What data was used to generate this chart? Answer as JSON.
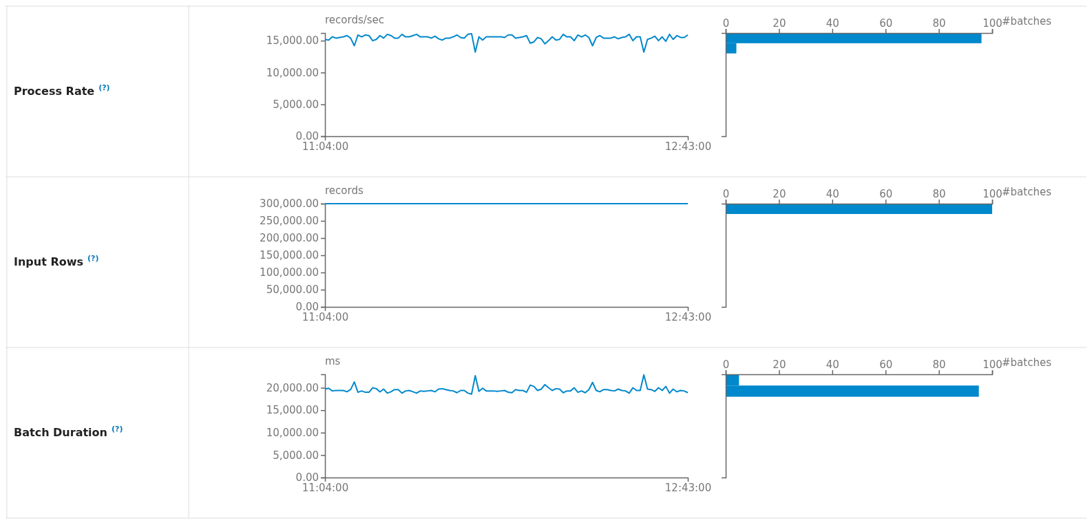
{
  "chart_data": [
    {
      "type": "other",
      "title": "Process Rate",
      "annotations": [
        "(?)"
      ]
    },
    {
      "type": "line",
      "ylabel": "records/sec",
      "ylim": [
        0,
        16200
      ],
      "yticks": [
        {
          "value": 0,
          "label": "0.00"
        },
        {
          "value": 5000,
          "label": "5,000.00"
        },
        {
          "value": 10000,
          "label": "10,000.00"
        },
        {
          "value": 15000,
          "label": "15,000.00"
        }
      ],
      "categories": [
        "11:04:00",
        null,
        null,
        null,
        null,
        null,
        null,
        null,
        null,
        null,
        null,
        null,
        null,
        null,
        null,
        null,
        null,
        null,
        null,
        null,
        null,
        null,
        null,
        null,
        null,
        null,
        null,
        null,
        null,
        null,
        null,
        null,
        null,
        null,
        null,
        null,
        null,
        null,
        null,
        null,
        null,
        null,
        null,
        null,
        null,
        null,
        null,
        null,
        null,
        null,
        null,
        null,
        null,
        null,
        null,
        null,
        null,
        null,
        null,
        null,
        null,
        null,
        null,
        null,
        null,
        null,
        null,
        null,
        null,
        null,
        null,
        null,
        null,
        null,
        null,
        null,
        null,
        null,
        null,
        null,
        null,
        null,
        null,
        null,
        null,
        null,
        null,
        null,
        null,
        null,
        null,
        null,
        null,
        null,
        null,
        null,
        null,
        null,
        null,
        "12:43:00"
      ],
      "series": [
        {
          "color": "#0088cc",
          "values": [
            15200,
            15100,
            15600,
            15400,
            15500,
            15600,
            15800,
            15400,
            14200,
            15900,
            15600,
            15900,
            15800,
            15000,
            15200,
            15800,
            15400,
            16000,
            15800,
            15400,
            15400,
            16000,
            15600,
            15600,
            15800,
            16000,
            15600,
            15600,
            15600,
            15400,
            15700,
            15300,
            15100,
            15400,
            15400,
            15600,
            15900,
            15500,
            15400,
            16000,
            16100,
            13200,
            15600,
            15100,
            15600,
            15600,
            15600,
            15600,
            15600,
            15500,
            15900,
            15900,
            15400,
            15500,
            15600,
            15800,
            14600,
            14800,
            15500,
            15300,
            14500,
            15000,
            15600,
            15100,
            15200,
            16000,
            15600,
            15600,
            15000,
            15900,
            15600,
            15900,
            15500,
            14200,
            15500,
            15800,
            15400,
            15400,
            15400,
            15600,
            15300,
            15500,
            15600,
            16000,
            15000,
            15600,
            15600,
            13200,
            15200,
            15400,
            15700,
            15000,
            15600,
            14900,
            16000,
            15200,
            15800,
            15500,
            15500,
            15900
          ]
        }
      ]
    },
    {
      "type": "histogram",
      "orientation": "horizontal",
      "xlabel": "#batches",
      "tick_labels": "x",
      "xlim": [
        0,
        100
      ],
      "xticks": [
        0,
        20,
        40,
        60,
        80,
        100
      ],
      "ylim": [
        0,
        16200
      ],
      "bins": [
        13000,
        14600,
        16200
      ],
      "values": [
        4,
        96
      ],
      "color": "#0088cc"
    },
    {
      "type": "other",
      "title": "Input Rows",
      "annotations": [
        "(?)"
      ]
    },
    {
      "type": "line",
      "ylabel": "records",
      "ylim": [
        0,
        300000
      ],
      "yticks": [
        {
          "value": 0,
          "label": "0.00"
        },
        {
          "value": 50000,
          "label": "50,000.00"
        },
        {
          "value": 100000,
          "label": "100,000.00"
        },
        {
          "value": 150000,
          "label": "150,000.00"
        },
        {
          "value": 200000,
          "label": "200,000.00"
        },
        {
          "value": 250000,
          "label": "250,000.00"
        },
        {
          "value": 300000,
          "label": "300,000.00"
        }
      ],
      "categories": [
        "11:04:00",
        null,
        null,
        null,
        null,
        null,
        null,
        null,
        null,
        null,
        null,
        null,
        null,
        null,
        null,
        null,
        null,
        null,
        null,
        null,
        null,
        null,
        null,
        null,
        null,
        null,
        null,
        null,
        null,
        null,
        null,
        null,
        null,
        null,
        null,
        null,
        null,
        null,
        null,
        null,
        null,
        null,
        null,
        null,
        null,
        null,
        null,
        null,
        null,
        null,
        null,
        null,
        null,
        null,
        null,
        null,
        null,
        null,
        null,
        null,
        null,
        null,
        null,
        null,
        null,
        null,
        null,
        null,
        null,
        null,
        null,
        null,
        null,
        null,
        null,
        null,
        null,
        null,
        null,
        null,
        null,
        null,
        null,
        null,
        null,
        null,
        null,
        null,
        null,
        null,
        null,
        null,
        null,
        null,
        null,
        null,
        null,
        null,
        null,
        "12:43:00"
      ],
      "series": [
        {
          "color": "#0088cc",
          "values": [
            300000,
            300000,
            300000,
            300000,
            300000,
            300000,
            300000,
            300000,
            300000,
            300000,
            300000,
            300000,
            300000,
            300000,
            300000,
            300000,
            300000,
            300000,
            300000,
            300000,
            300000,
            300000,
            300000,
            300000,
            300000,
            300000,
            300000,
            300000,
            300000,
            300000,
            300000,
            300000,
            300000,
            300000,
            300000,
            300000,
            300000,
            300000,
            300000,
            300000,
            300000,
            300000,
            300000,
            300000,
            300000,
            300000,
            300000,
            300000,
            300000,
            300000,
            300000,
            300000,
            300000,
            300000,
            300000,
            300000,
            300000,
            300000,
            300000,
            300000,
            300000,
            300000,
            300000,
            300000,
            300000,
            300000,
            300000,
            300000,
            300000,
            300000,
            300000,
            300000,
            300000,
            300000,
            300000,
            300000,
            300000,
            300000,
            300000,
            300000,
            300000,
            300000,
            300000,
            300000,
            300000,
            300000,
            300000,
            300000,
            300000,
            300000,
            300000,
            300000,
            300000,
            300000,
            300000,
            300000,
            300000,
            300000,
            300000,
            300000
          ]
        }
      ]
    },
    {
      "type": "histogram",
      "orientation": "horizontal",
      "xlabel": "#batches",
      "tick_labels": "x",
      "xlim": [
        0,
        100
      ],
      "xticks": [
        0,
        20,
        40,
        60,
        80,
        100
      ],
      "ylim": [
        0,
        300000
      ],
      "bins": [
        270000,
        300000
      ],
      "values": [
        100
      ],
      "color": "#0088cc"
    },
    {
      "type": "other",
      "title": "Batch Duration",
      "annotations": [
        "(?)"
      ]
    },
    {
      "type": "line",
      "ylabel": "ms",
      "ylim": [
        0,
        23000
      ],
      "yticks": [
        {
          "value": 0,
          "label": "0.00"
        },
        {
          "value": 5000,
          "label": "5,000.00"
        },
        {
          "value": 10000,
          "label": "10,000.00"
        },
        {
          "value": 15000,
          "label": "15,000.00"
        },
        {
          "value": 20000,
          "label": "20,000.00"
        }
      ],
      "categories": [
        "11:04:00",
        null,
        null,
        null,
        null,
        null,
        null,
        null,
        null,
        null,
        null,
        null,
        null,
        null,
        null,
        null,
        null,
        null,
        null,
        null,
        null,
        null,
        null,
        null,
        null,
        null,
        null,
        null,
        null,
        null,
        null,
        null,
        null,
        null,
        null,
        null,
        null,
        null,
        null,
        null,
        null,
        null,
        null,
        null,
        null,
        null,
        null,
        null,
        null,
        null,
        null,
        null,
        null,
        null,
        null,
        null,
        null,
        null,
        null,
        null,
        null,
        null,
        null,
        null,
        null,
        null,
        null,
        null,
        null,
        null,
        null,
        null,
        null,
        null,
        null,
        null,
        null,
        null,
        null,
        null,
        null,
        null,
        null,
        null,
        null,
        null,
        null,
        null,
        null,
        null,
        null,
        null,
        null,
        null,
        null,
        null,
        null,
        null,
        null,
        "12:43:00"
      ],
      "series": [
        {
          "color": "#0088cc",
          "values": [
            19700,
            19900,
            19300,
            19400,
            19400,
            19400,
            19100,
            19600,
            21300,
            19000,
            19300,
            19000,
            19000,
            20000,
            19800,
            19100,
            19700,
            18800,
            19100,
            19600,
            19600,
            18800,
            19300,
            19400,
            19100,
            18800,
            19300,
            19200,
            19300,
            19400,
            19100,
            19700,
            19800,
            19600,
            19400,
            19300,
            18900,
            19400,
            19400,
            18800,
            18600,
            22700,
            19200,
            19900,
            19300,
            19300,
            19300,
            19200,
            19300,
            19400,
            19000,
            18900,
            19600,
            19400,
            19400,
            19000,
            20600,
            20300,
            19400,
            19700,
            20700,
            20000,
            19400,
            19800,
            19700,
            18900,
            19300,
            19300,
            20000,
            19000,
            19300,
            18900,
            19600,
            21200,
            19400,
            19100,
            19600,
            19600,
            19400,
            19300,
            19700,
            19400,
            19300,
            18800,
            20000,
            19400,
            19400,
            22900,
            19700,
            19600,
            19200,
            20000,
            19400,
            20300,
            18800,
            19700,
            19100,
            19400,
            19300,
            18900
          ]
        }
      ]
    },
    {
      "type": "histogram",
      "orientation": "horizontal",
      "xlabel": "#batches",
      "tick_labels": "x",
      "xlim": [
        0,
        100
      ],
      "xticks": [
        0,
        20,
        40,
        60,
        80,
        100
      ],
      "ylim": [
        0,
        23000
      ],
      "bins": [
        18000,
        20500,
        23000
      ],
      "values": [
        95,
        5
      ],
      "color": "#0088cc"
    }
  ]
}
